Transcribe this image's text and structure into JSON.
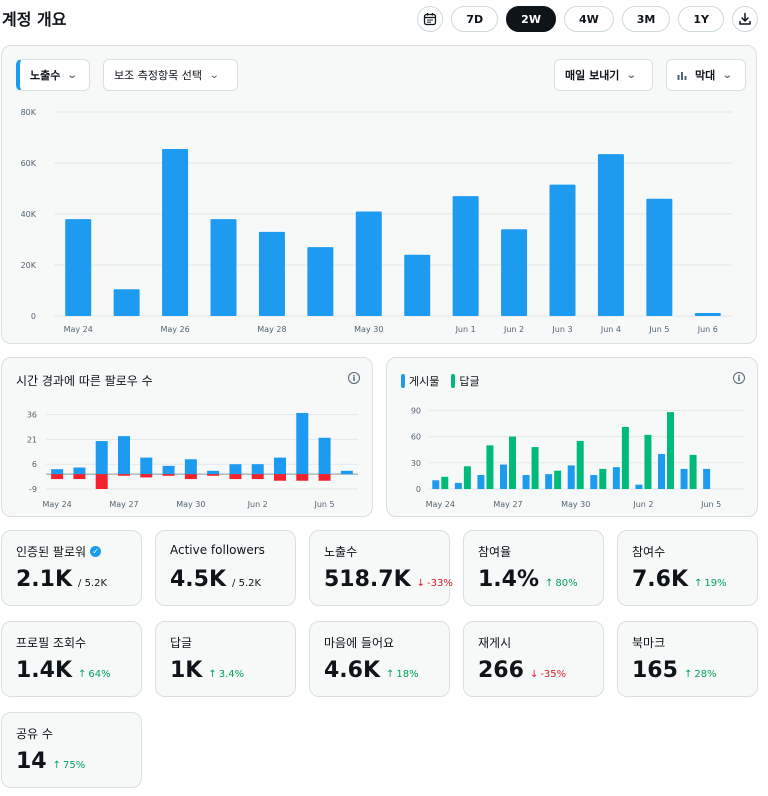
{
  "header": {
    "title": "계정 개요",
    "ranges": [
      "7D",
      "2W",
      "4W",
      "3M",
      "1Y"
    ],
    "active_range": "2W"
  },
  "main_chart_controls": {
    "primary_metric": "노출수",
    "secondary_metric_placeholder": "보조 측정항목 선택",
    "export_label": "매일 보내기",
    "chart_type_label": "막대"
  },
  "followers_panel": {
    "title": "시간 경과에 따른 팔로우 수"
  },
  "activity_panel": {
    "legend": [
      "게시물",
      "답글"
    ]
  },
  "colors": {
    "blue": "#1d9bf0",
    "green": "#00ba7c",
    "red": "#f4212e",
    "up": "#00a35c",
    "down": "#d91a29"
  },
  "chart_data": [
    {
      "type": "bar",
      "categories": [
        "May 24",
        "May 25",
        "May 26",
        "May 27",
        "May 28",
        "May 29",
        "May 30",
        "May 31",
        "Jun 1",
        "Jun 2",
        "Jun 3",
        "Jun 4",
        "Jun 5",
        "Jun 6"
      ],
      "values": [
        38000,
        10500,
        65500,
        38000,
        33000,
        27000,
        41000,
        24000,
        47000,
        34000,
        51500,
        63500,
        46000,
        1200
      ],
      "tick_labels": [
        "May 24",
        "May 26",
        "May 28",
        "May 30",
        "Jun 1",
        "Jun 2",
        "Jun 3",
        "Jun 4",
        "Jun 5",
        "Jun 6"
      ],
      "ylim": [
        0,
        80000
      ],
      "y_ticks": [
        "0",
        "20K",
        "40K",
        "60K",
        "80K"
      ],
      "grid": true
    },
    {
      "type": "bar",
      "categories": [
        "May 24",
        "May 25",
        "May 26",
        "May 27",
        "May 28",
        "May 29",
        "May 30",
        "May 31",
        "Jun 1",
        "Jun 2",
        "Jun 3",
        "Jun 4",
        "Jun 5",
        "Jun 6"
      ],
      "series": [
        {
          "values": [
            3,
            4,
            20,
            23,
            10,
            5,
            9,
            2,
            6,
            6,
            10,
            37,
            22,
            2
          ]
        },
        {
          "values": [
            -3,
            -3,
            -9,
            -1,
            -2,
            -1,
            -3,
            -1,
            -3,
            -3,
            -4,
            -4,
            -4,
            0
          ]
        }
      ],
      "tick_labels": [
        "May 24",
        "May 27",
        "May 30",
        "Jun 2",
        "Jun 5"
      ],
      "ylim": [
        -9,
        40
      ],
      "y_ticks": [
        "36",
        "21",
        "6",
        "-9"
      ],
      "grid": true
    },
    {
      "type": "bar",
      "categories": [
        "May 24",
        "May 25",
        "May 26",
        "May 27",
        "May 28",
        "May 29",
        "May 30",
        "May 31",
        "Jun 1",
        "Jun 2",
        "Jun 3",
        "Jun 4",
        "Jun 5",
        "Jun 6"
      ],
      "series": [
        {
          "name": "게시물",
          "values": [
            10,
            7,
            16,
            28,
            16,
            17,
            27,
            16,
            25,
            5,
            40,
            23,
            23,
            0
          ]
        },
        {
          "name": "답글",
          "values": [
            14,
            26,
            50,
            60,
            48,
            21,
            55,
            23,
            71,
            62,
            88,
            39,
            0,
            0
          ]
        }
      ],
      "tick_labels": [
        "May 24",
        "May 27",
        "May 30",
        "Jun 2",
        "Jun 5"
      ],
      "ylim": [
        0,
        95
      ],
      "y_ticks": [
        "0",
        "30",
        "60",
        "90"
      ],
      "grid": true
    }
  ],
  "stats": [
    {
      "label": "인증된 팔로워",
      "value": "2.1K",
      "sub": "/ 5.2K",
      "verified": true
    },
    {
      "label": "Active followers",
      "value": "4.5K",
      "sub": "/ 5.2K"
    },
    {
      "label": "노출수",
      "value": "518.7K",
      "delta": "-33%",
      "dir": "down"
    },
    {
      "label": "참여율",
      "value": "1.4%",
      "delta": "80%",
      "dir": "up"
    },
    {
      "label": "참여수",
      "value": "7.6K",
      "delta": "19%",
      "dir": "up"
    },
    {
      "label": "프로필 조회수",
      "value": "1.4K",
      "delta": "64%",
      "dir": "up"
    },
    {
      "label": "답글",
      "value": "1K",
      "delta": "3.4%",
      "dir": "up"
    },
    {
      "label": "마음에 들어요",
      "value": "4.6K",
      "delta": "18%",
      "dir": "up"
    },
    {
      "label": "재게시",
      "value": "266",
      "delta": "-35%",
      "dir": "down"
    },
    {
      "label": "북마크",
      "value": "165",
      "delta": "28%",
      "dir": "up"
    },
    {
      "label": "공유 수",
      "value": "14",
      "delta": "75%",
      "dir": "up"
    }
  ]
}
